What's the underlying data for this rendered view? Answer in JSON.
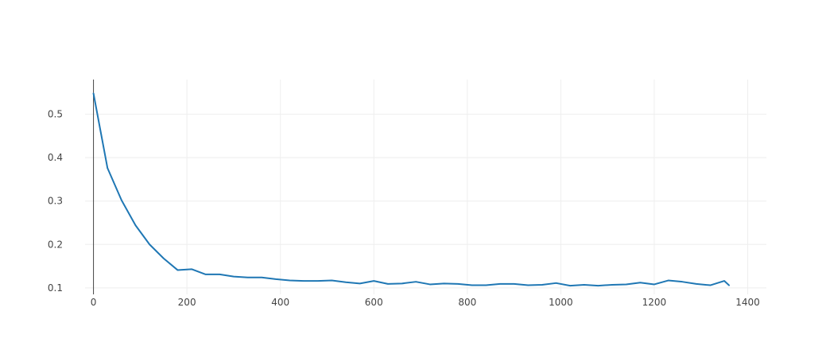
{
  "chart_data": {
    "type": "line",
    "title": "",
    "xlabel": "",
    "ylabel": "",
    "xlim": [
      -18,
      1440
    ],
    "ylim": [
      0.085,
      0.58
    ],
    "x_ticks": [
      0,
      200,
      400,
      600,
      800,
      1000,
      1200,
      1400
    ],
    "x_tick_labels": [
      "0",
      "200",
      "400",
      "600",
      "800",
      "1000",
      "1200",
      "1400"
    ],
    "y_ticks": [
      0.1,
      0.2,
      0.3,
      0.4,
      0.5
    ],
    "y_tick_labels": [
      "0.1",
      "0.2",
      "0.3",
      "0.4",
      "0.5"
    ],
    "grid": true,
    "legend": "none",
    "colors": {
      "line": "#1f77b4",
      "grid": "#eeeeee",
      "zeroline": "#444444"
    },
    "series": [
      {
        "x": [
          0,
          30,
          60,
          90,
          120,
          150,
          180,
          210,
          240,
          270,
          300,
          330,
          360,
          390,
          420,
          450,
          480,
          510,
          540,
          570,
          600,
          630,
          660,
          690,
          720,
          750,
          780,
          810,
          840,
          870,
          900,
          930,
          960,
          990,
          1020,
          1050,
          1080,
          1110,
          1140,
          1170,
          1200,
          1230,
          1260,
          1290,
          1320,
          1350,
          1360
        ],
        "y": [
          0.548,
          0.376,
          0.302,
          0.244,
          0.2,
          0.168,
          0.141,
          0.143,
          0.131,
          0.131,
          0.126,
          0.124,
          0.124,
          0.12,
          0.117,
          0.116,
          0.116,
          0.117,
          0.113,
          0.11,
          0.116,
          0.109,
          0.11,
          0.114,
          0.108,
          0.11,
          0.109,
          0.106,
          0.106,
          0.109,
          0.109,
          0.106,
          0.107,
          0.111,
          0.105,
          0.107,
          0.105,
          0.107,
          0.108,
          0.112,
          0.108,
          0.117,
          0.114,
          0.109,
          0.106,
          0.116,
          0.106
        ]
      }
    ]
  }
}
